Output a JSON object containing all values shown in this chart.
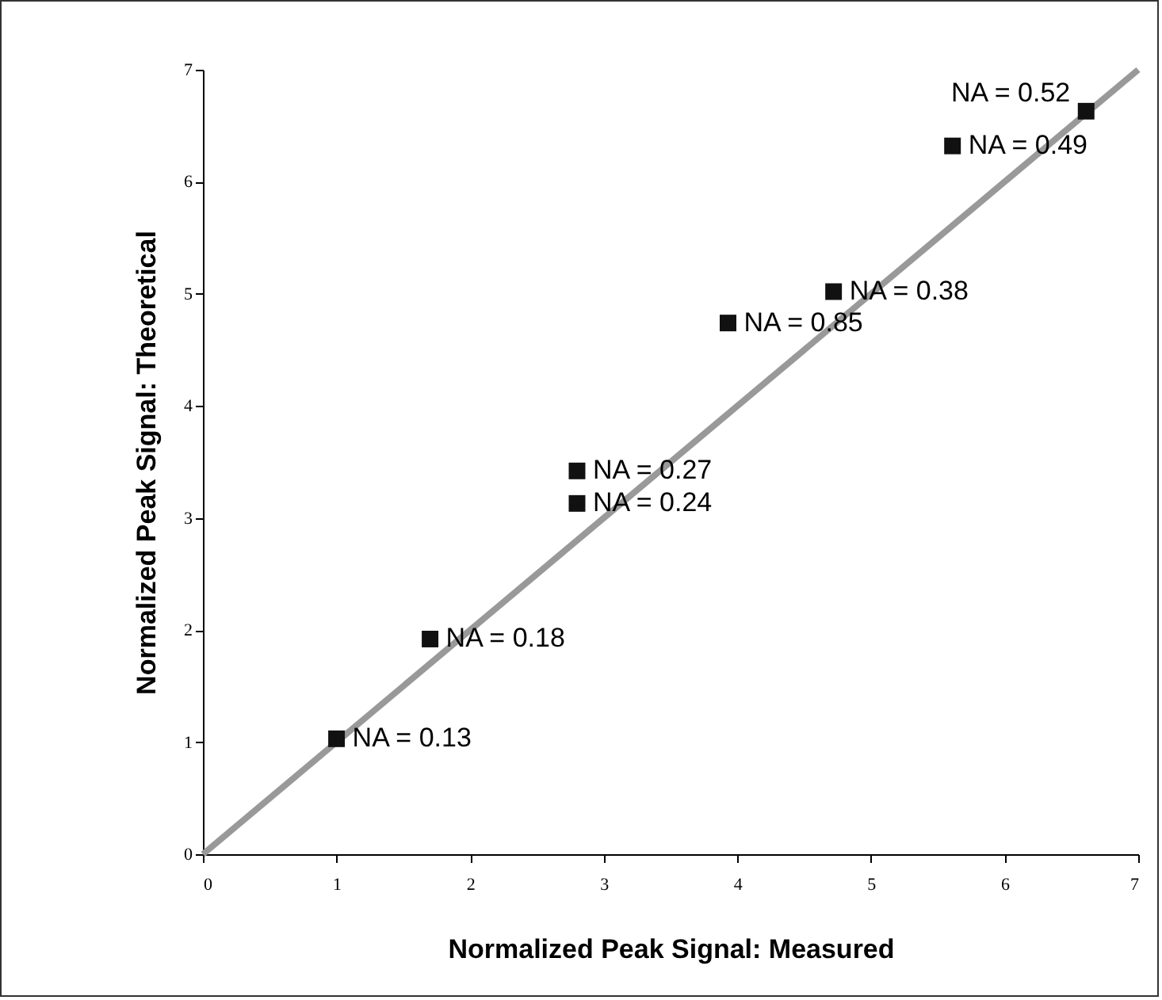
{
  "chart_data": {
    "type": "scatter",
    "xlabel": "Normalized Peak Signal: Measured",
    "ylabel": "Normalized Peak Signal: Theoretical",
    "xlim": [
      0,
      7
    ],
    "ylim": [
      0,
      7
    ],
    "xticks": [
      0,
      1,
      2,
      3,
      4,
      5,
      6,
      7
    ],
    "yticks": [
      0,
      1,
      2,
      3,
      4,
      5,
      6,
      7
    ],
    "grid": false,
    "series": [
      {
        "type": "line",
        "color": "#999999",
        "x": [
          0,
          7
        ],
        "values": [
          0,
          7
        ]
      },
      {
        "marker": "square",
        "color": "#111111",
        "x": [
          1.0,
          1.7,
          2.8,
          2.8,
          3.93,
          4.72,
          5.61,
          6.61
        ],
        "values": [
          1.03,
          1.92,
          3.42,
          3.13,
          4.74,
          5.02,
          6.32,
          6.63
        ]
      }
    ],
    "annotations": [
      {
        "text": "NA = 0.13",
        "x": 1.0,
        "y": 1.03
      },
      {
        "text": "NA = 0.18",
        "x": 1.7,
        "y": 1.92
      },
      {
        "text": "NA = 0.27",
        "x": 2.8,
        "y": 3.42
      },
      {
        "text": "NA = 0.24",
        "x": 2.8,
        "y": 3.13
      },
      {
        "text": "NA = 0.85",
        "x": 3.93,
        "y": 4.74
      },
      {
        "text": "NA = 0.38",
        "x": 4.72,
        "y": 5.02
      },
      {
        "text": "NA = 0.49",
        "x": 5.61,
        "y": 6.32
      },
      {
        "text": "NA = 0.52",
        "x": 6.61,
        "y": 6.63
      }
    ]
  }
}
